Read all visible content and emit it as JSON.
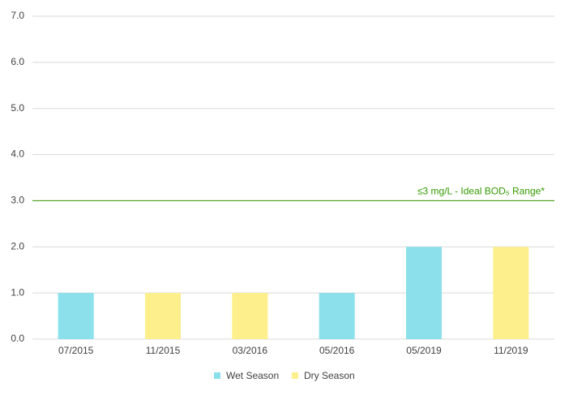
{
  "chart_data": {
    "type": "bar",
    "categories": [
      "07/2015",
      "11/2015",
      "03/2016",
      "05/2016",
      "05/2019",
      "11/2019"
    ],
    "series": [
      {
        "name": "Wet Season",
        "color": "#8be0ec",
        "values": [
          1,
          null,
          null,
          1,
          2,
          null
        ]
      },
      {
        "name": "Dry Season",
        "color": "#fdef8c",
        "values": [
          null,
          1,
          1,
          null,
          null,
          2
        ]
      }
    ],
    "ylim": [
      0,
      7
    ],
    "yticks": [
      {
        "value": 0,
        "label": "0.0"
      },
      {
        "value": 1,
        "label": "1.0"
      },
      {
        "value": 2,
        "label": "2.0"
      },
      {
        "value": 3,
        "label": "3.0"
      },
      {
        "value": 4,
        "label": "4.0"
      },
      {
        "value": 5,
        "label": "5.0"
      },
      {
        "value": 6,
        "label": "6.0"
      },
      {
        "value": 7,
        "label": "7.0"
      }
    ],
    "grid": true,
    "reference_line": {
      "value": 3,
      "label": "≤3 mg/L - Ideal BOD₅ Range*",
      "color": "#339900"
    },
    "legend": "bottom"
  }
}
